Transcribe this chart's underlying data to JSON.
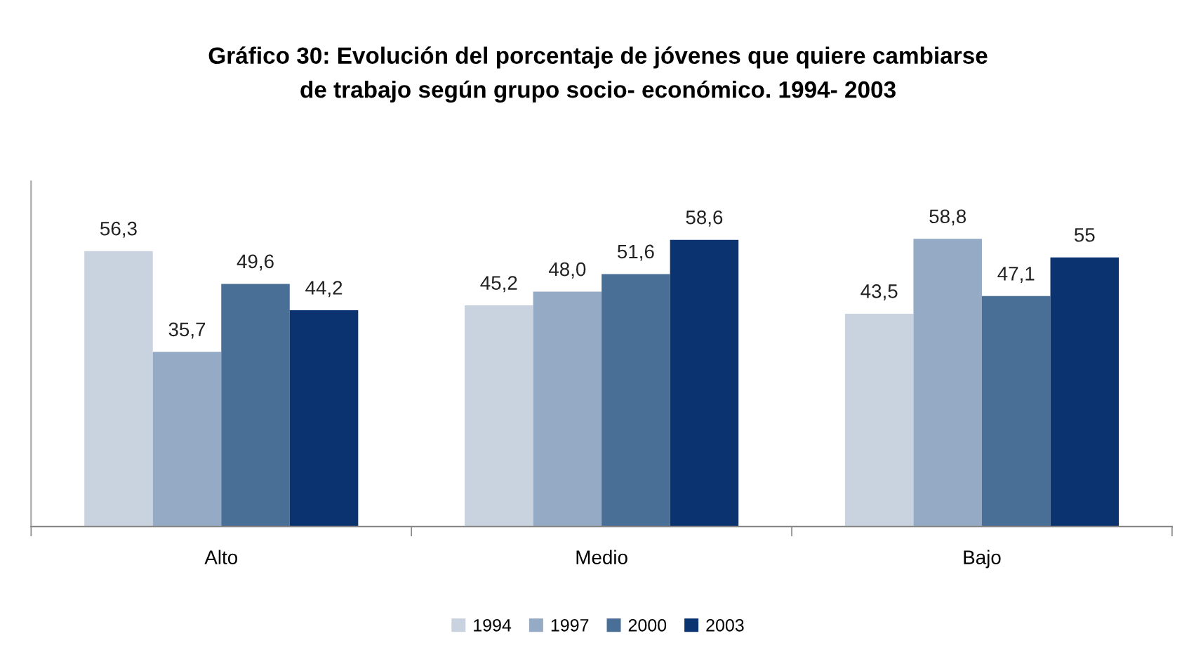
{
  "chart_data": {
    "type": "bar",
    "title": "Gráfico 30: Evolución del porcentaje de jóvenes que quiere cambiarse\nde trabajo según grupo socio- económico. 1994- 2003",
    "categories": [
      "Alto",
      "Medio",
      "Bajo"
    ],
    "series": [
      {
        "name": "1994",
        "color": "#c9d3df",
        "values": [
          56.3,
          45.2,
          43.5
        ],
        "value_labels": [
          "56,3",
          "45,2",
          "43,5"
        ]
      },
      {
        "name": "1997",
        "color": "#95aac4",
        "values": [
          35.7,
          48.0,
          58.8
        ],
        "value_labels": [
          "35,7",
          "48,0",
          "58,8"
        ]
      },
      {
        "name": "2000",
        "color": "#4a6f97",
        "values": [
          49.6,
          51.6,
          47.1
        ],
        "value_labels": [
          "49,6",
          "51,6",
          "47,1"
        ]
      },
      {
        "name": "2003",
        "color": "#0b3370",
        "values": [
          44.2,
          58.6,
          55
        ],
        "value_labels": [
          "44,2",
          "58,6",
          "55"
        ]
      }
    ],
    "legend": "bottom",
    "grid": false
  }
}
